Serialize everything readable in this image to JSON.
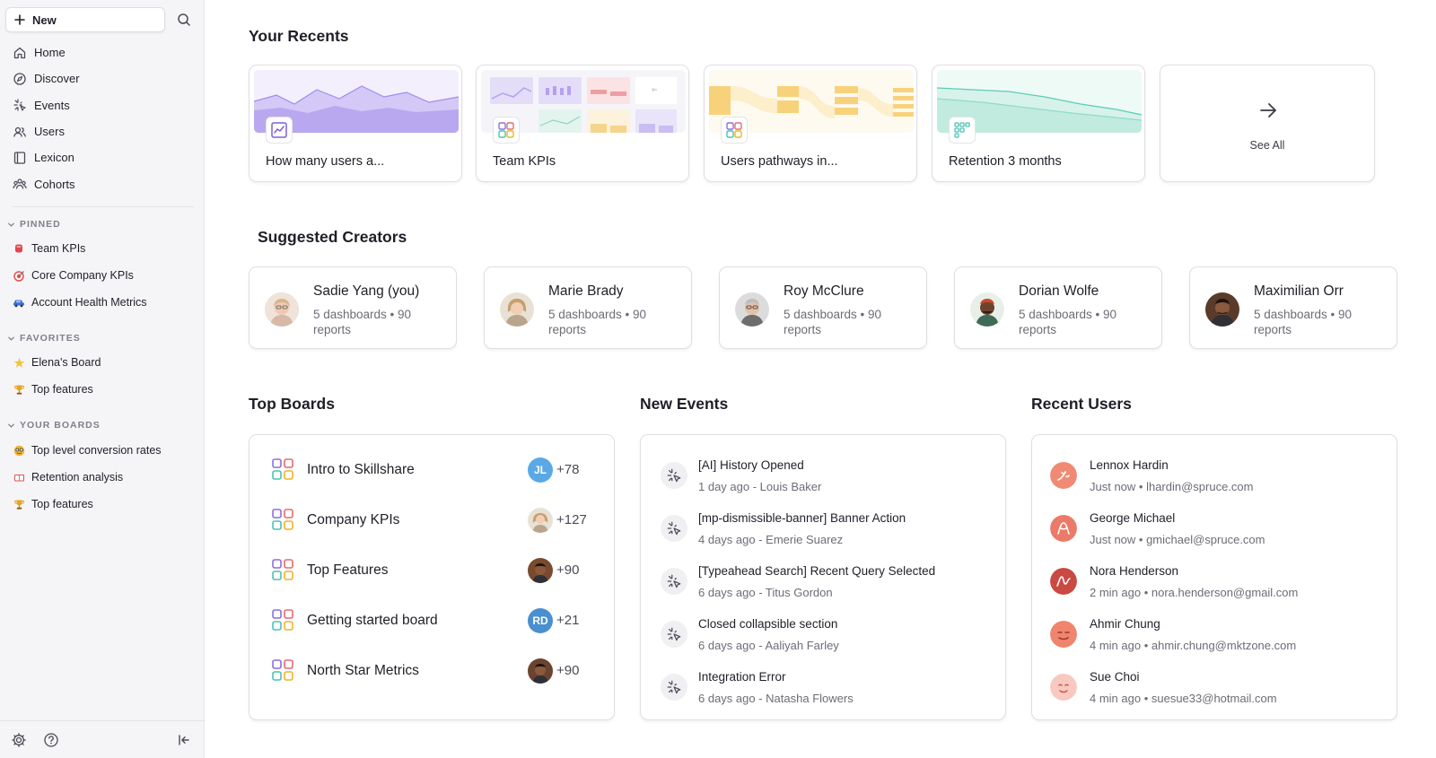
{
  "sidebar": {
    "new_label": "New",
    "nav": [
      {
        "label": "Home",
        "icon": "home-icon"
      },
      {
        "label": "Discover",
        "icon": "compass-icon"
      },
      {
        "label": "Events",
        "icon": "sparkle-icon"
      },
      {
        "label": "Users",
        "icon": "users-icon"
      },
      {
        "label": "Lexicon",
        "icon": "book-icon"
      },
      {
        "label": "Cohorts",
        "icon": "cohorts-icon"
      }
    ],
    "pinned": {
      "title": "PINNED",
      "items": [
        {
          "label": "Team KPIs",
          "emoji": "red-pin",
          "color": "#e0474c"
        },
        {
          "label": "Core Company KPIs",
          "emoji": "target",
          "color": "#e2504f"
        },
        {
          "label": "Account Health Metrics",
          "emoji": "car",
          "color": "#3a6fd8"
        }
      ]
    },
    "favorites": {
      "title": "FAVORITES",
      "items": [
        {
          "label": "Elena's Board",
          "emoji": "star",
          "color": "#f3c33c"
        },
        {
          "label": "Top features",
          "emoji": "trophy",
          "color": "#e8a524"
        }
      ]
    },
    "your_boards": {
      "title": "YOUR BOARDS",
      "items": [
        {
          "label": "Top level conversion rates",
          "emoji": "nerd-face",
          "color": "#f0b429"
        },
        {
          "label": "Retention analysis",
          "emoji": "book",
          "color": "#d9534f"
        },
        {
          "label": "Top features",
          "emoji": "trophy",
          "color": "#e8a524"
        }
      ]
    }
  },
  "recents": {
    "title": "Your Recents",
    "items": [
      {
        "title": "How many users a...",
        "type": "insights",
        "accent": "#8b6fe0"
      },
      {
        "title": "Team KPIs",
        "type": "board",
        "accent": "#7b68ee"
      },
      {
        "title": "Users pathways in...",
        "type": "board",
        "accent": "#f0b429"
      },
      {
        "title": "Retention 3 months",
        "type": "retention",
        "accent": "#4cc3b0"
      }
    ],
    "see_all": "See All"
  },
  "creators": {
    "title": "Suggested Creators",
    "items": [
      {
        "name": "Sadie Yang (you)",
        "meta": "5 dashboards • 90 reports"
      },
      {
        "name": "Marie Brady",
        "meta": "5 dashboards • 90 reports"
      },
      {
        "name": "Roy McClure",
        "meta": "5 dashboards • 90 reports"
      },
      {
        "name": "Dorian Wolfe",
        "meta": "5 dashboards • 90 reports"
      },
      {
        "name": "Maximilian Orr",
        "meta": "5 dashboards • 90 reports"
      }
    ]
  },
  "top_boards": {
    "title": "Top Boards",
    "items": [
      {
        "name": "Intro to Skillshare",
        "avatar_initials": "JL",
        "avatar_color": "#5aa9e6",
        "count": "+78"
      },
      {
        "name": "Company KPIs",
        "avatar_initials": "",
        "avatar_color": "#c9a27a",
        "count": "+127"
      },
      {
        "name": "Top Features",
        "avatar_initials": "",
        "avatar_color": "#7a4a2e",
        "count": "+90"
      },
      {
        "name": "Getting started board",
        "avatar_initials": "RD",
        "avatar_color": "#4a8fd0",
        "count": "+21"
      },
      {
        "name": "North Star Metrics",
        "avatar_initials": "",
        "avatar_color": "#6b4430",
        "count": "+90"
      }
    ]
  },
  "new_events": {
    "title": "New Events",
    "items": [
      {
        "name": "[AI] History Opened",
        "sub": "1 day ago - Louis Baker"
      },
      {
        "name": "[mp-dismissible-banner] Banner Action",
        "sub": "4 days ago - Emerie Suarez"
      },
      {
        "name": "[Typeahead Search] Recent Query Selected",
        "sub": "6 days ago - Titus Gordon"
      },
      {
        "name": "Closed collapsible section",
        "sub": "6 days ago - Aaliyah Farley"
      },
      {
        "name": "Integration Error",
        "sub": "6 days ago - Natasha Flowers"
      }
    ]
  },
  "recent_users": {
    "title": "Recent Users",
    "items": [
      {
        "name": "Lennox Hardin",
        "sub": "Just now • lhardin@spruce.com",
        "color": "#f08a75"
      },
      {
        "name": "George Michael",
        "sub": "Just now • gmichael@spruce.com",
        "color": "#ec7a68"
      },
      {
        "name": "Nora Henderson",
        "sub": "2 min ago • nora.henderson@gmail.com",
        "color": "#c94a43"
      },
      {
        "name": "Ahmir Chung",
        "sub": "4 min ago • ahmir.chung@mktzone.com",
        "color": "#f0846d"
      },
      {
        "name": "Sue Choi",
        "sub": "4 min ago • suesue33@hotmail.com",
        "color": "#f7c9c0"
      }
    ]
  }
}
